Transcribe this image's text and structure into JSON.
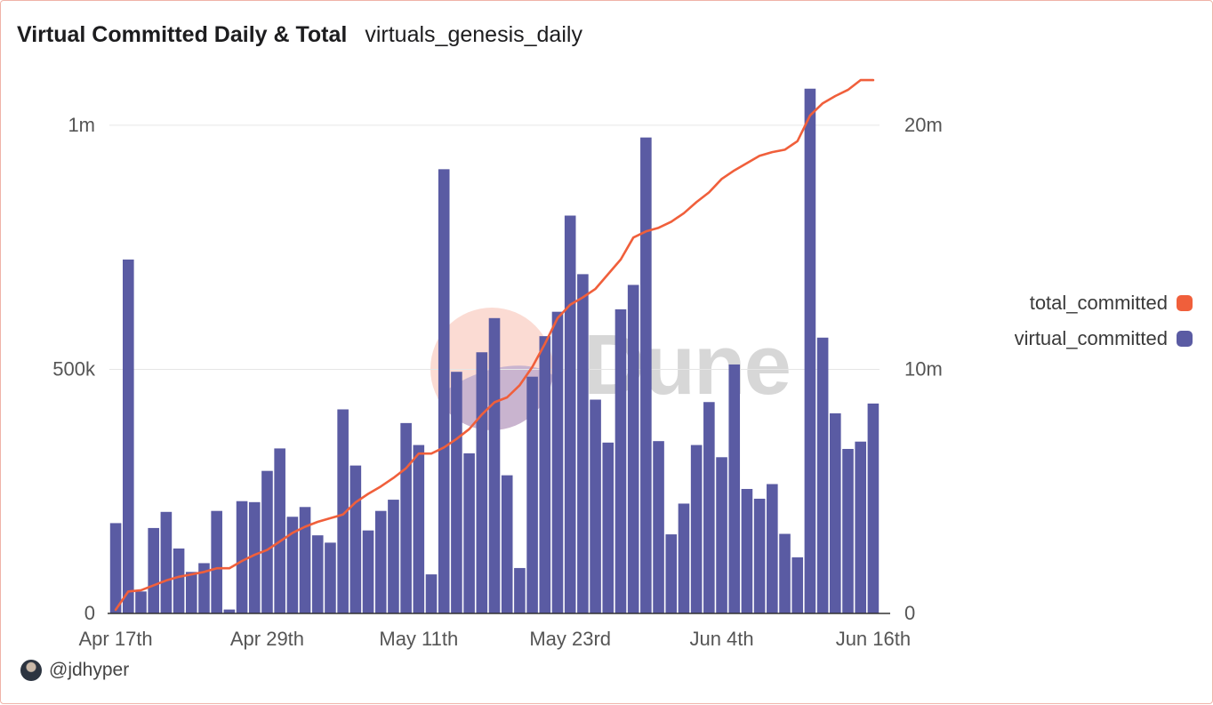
{
  "header": {
    "title": "Virtual Committed Daily & Total",
    "subtitle": "virtuals_genesis_daily"
  },
  "watermark": {
    "text": "Dune"
  },
  "author": {
    "handle": "@jdhyper"
  },
  "colors": {
    "bar": "#5a5ba3",
    "line": "#f05f3b",
    "grid": "#e6e6e6",
    "axis": "#555555"
  },
  "chart_data": {
    "type": "bar",
    "x_tick_labels": [
      "Apr 17th",
      "Apr 29th",
      "May 11th",
      "May 23rd",
      "Jun 4th",
      "Jun 16th"
    ],
    "x_tick_indices": [
      0,
      12,
      24,
      36,
      48,
      60
    ],
    "left_axis": {
      "range": [
        0,
        1080000
      ],
      "ticks": [
        0,
        500000,
        1000000
      ],
      "tick_labels": [
        "0",
        "500k",
        "1m"
      ]
    },
    "right_axis": {
      "range": [
        0,
        21600000
      ],
      "ticks": [
        0,
        10000000,
        20000000
      ],
      "tick_labels": [
        "0",
        "10m",
        "20m"
      ]
    },
    "grid": true,
    "legend_position": "right",
    "series": [
      {
        "name": "total_committed",
        "type": "line",
        "axis": "right",
        "color": "#f05f3b",
        "values": [
          150000,
          900000,
          950000,
          1150000,
          1350000,
          1500000,
          1600000,
          1700000,
          1850000,
          1850000,
          2150000,
          2400000,
          2600000,
          2950000,
          3300000,
          3550000,
          3750000,
          3900000,
          4050000,
          4550000,
          4900000,
          5200000,
          5550000,
          5950000,
          6550000,
          6550000,
          6800000,
          7150000,
          7550000,
          8150000,
          8650000,
          8850000,
          9350000,
          10100000,
          11050000,
          12100000,
          12650000,
          12950000,
          13300000,
          13900000,
          14500000,
          15400000,
          15650000,
          15800000,
          16050000,
          16400000,
          16850000,
          17250000,
          17800000,
          18150000,
          18450000,
          18750000,
          18900000,
          19000000,
          19350000,
          20400000,
          20900000,
          21200000,
          21450000,
          21850000,
          21850000
        ]
      },
      {
        "name": "virtual_committed",
        "type": "bar",
        "axis": "left",
        "color": "#5a5ba3",
        "values": [
          185000,
          725000,
          45000,
          175000,
          208000,
          133000,
          85000,
          103000,
          210000,
          8000,
          230000,
          228000,
          292000,
          338000,
          198000,
          218000,
          160000,
          145000,
          418000,
          303000,
          170000,
          210000,
          233000,
          390000,
          345000,
          80000,
          910000,
          495000,
          328000,
          535000,
          605000,
          283000,
          93000,
          485000,
          568000,
          618000,
          815000,
          695000,
          438000,
          350000,
          623000,
          673000,
          975000,
          353000,
          162000,
          225000,
          345000,
          433000,
          320000,
          510000,
          255000,
          235000,
          265000,
          163000,
          115000,
          1075000,
          565000,
          410000,
          337000,
          352000,
          430000
        ]
      }
    ]
  }
}
